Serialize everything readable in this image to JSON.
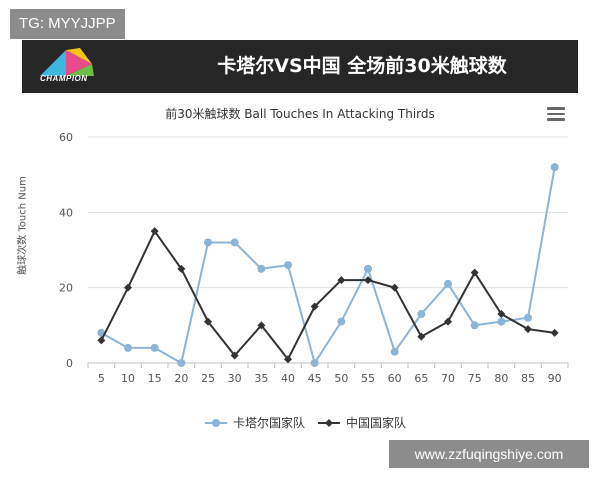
{
  "tag": "TG: MYYJJPP",
  "header": {
    "logo_text": "CHAMPION",
    "title": "卡塔尔VS中国 全场前30米触球数"
  },
  "watermark": "www.zzfuqingshiye.com",
  "colors": {
    "series_qatar": "#8db4d6",
    "series_china": "#333333",
    "header_bg": "#262626",
    "grid": "#e0e0e0"
  },
  "chart_data": {
    "type": "line",
    "title": "前30米触球数 Ball Touches In Attacking Thirds",
    "ylabel": "触球次数 Touch Num",
    "xlabel": "",
    "categories": [
      "5",
      "10",
      "15",
      "20",
      "25",
      "30",
      "35",
      "40",
      "45",
      "50",
      "55",
      "60",
      "65",
      "70",
      "75",
      "80",
      "85",
      "90"
    ],
    "ylim": [
      0,
      60
    ],
    "yticks": [
      0,
      20,
      40,
      60
    ],
    "grid": true,
    "legend_position": "bottom",
    "series": [
      {
        "name": "卡塔尔国家队",
        "values": [
          8,
          4,
          4,
          0,
          32,
          32,
          25,
          26,
          0,
          11,
          25,
          3,
          13,
          21,
          10,
          11,
          12,
          52
        ]
      },
      {
        "name": "中国国家队",
        "values": [
          6,
          20,
          35,
          25,
          11,
          2,
          10,
          1,
          15,
          22,
          22,
          20,
          7,
          11,
          24,
          13,
          9,
          8
        ]
      }
    ]
  }
}
